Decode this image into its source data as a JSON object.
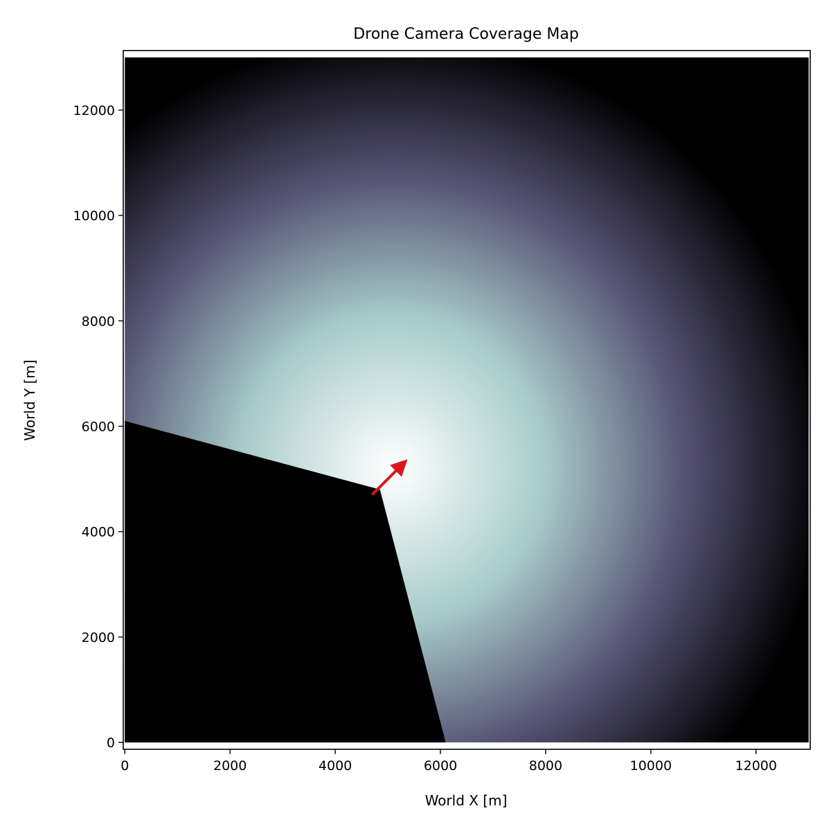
{
  "chart_data": {
    "type": "heatmap",
    "title": "Drone Camera Coverage Map",
    "xlabel": "World X [m]",
    "ylabel": "World Y [m]",
    "xlim": [
      -30,
      13030
    ],
    "ylim": [
      -130,
      13130
    ],
    "x_ticks": [
      0,
      2000,
      4000,
      6000,
      8000,
      10000,
      12000
    ],
    "y_ticks": [
      0,
      2000,
      4000,
      6000,
      8000,
      10000,
      12000
    ],
    "grid": false,
    "field_extent": {
      "x": [
        0,
        13000
      ],
      "y": [
        0,
        13000
      ]
    },
    "colormap": "bone",
    "colormap_stops": [
      "#000000",
      "#555272",
      "#a8ccca",
      "#ffffff"
    ],
    "coverage_falloff": {
      "center": [
        5100,
        5200
      ],
      "zero_radius": 8200,
      "note_values": "coverage 1.0 at center, decreasing to 0 at radius"
    },
    "blind_region": {
      "vertex": [
        4850,
        4800
      ],
      "edge_points": [
        [
          0,
          6100
        ],
        [
          6100,
          0
        ]
      ]
    },
    "drone": {
      "position": [
        4700,
        4700
      ],
      "heading": [
        5300,
        5300
      ],
      "color": "#d7191c"
    }
  }
}
